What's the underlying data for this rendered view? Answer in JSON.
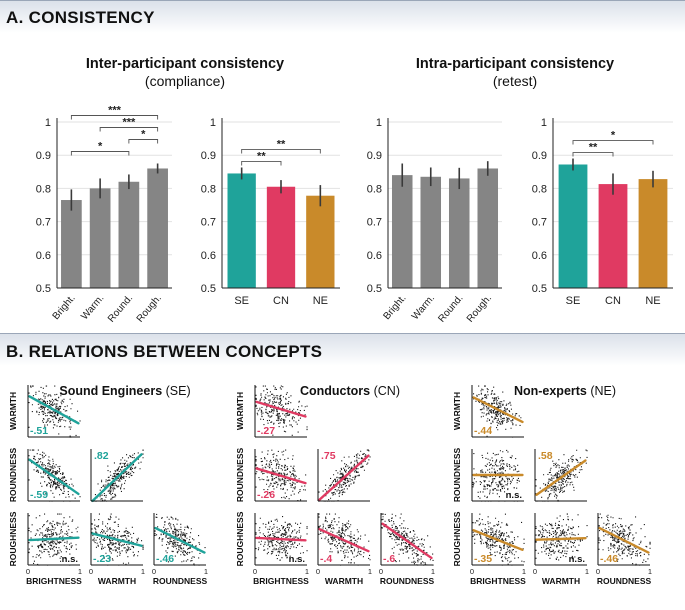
{
  "section_a": {
    "title": "A. CONSISTENCY",
    "inter_title": "Inter-participant consistency",
    "inter_subtitle": "(compliance)",
    "intra_title": "Intra-participant consistency",
    "intra_subtitle": "(retest)"
  },
  "section_b": {
    "title": "B. RELATIONS BETWEEN CONCEPTS",
    "groups": [
      {
        "name": "Sound Engineers",
        "abbr": "(SE)"
      },
      {
        "name": "Conductors",
        "abbr": "(CN)"
      },
      {
        "name": "Non-experts",
        "abbr": "(NE)"
      }
    ],
    "row_labels": [
      "WARMTH",
      "ROUNDNESS",
      "ROUGHNESS"
    ],
    "col_labels": [
      "BRIGHTNESS",
      "WARMTH",
      "ROUNDNESS"
    ],
    "tick_labels": [
      "0",
      "1"
    ],
    "ns_label": "n.s."
  },
  "colors": {
    "gray": "#858585",
    "SE": "#1fa39a",
    "CN": "#e03a62",
    "NE": "#c98a2a"
  },
  "chart_data": [
    {
      "type": "bar",
      "title": "Inter-participant consistency (compliance)",
      "categories": [
        "Bright.",
        "Warm.",
        "Round.",
        "Rough."
      ],
      "values": [
        0.765,
        0.8,
        0.82,
        0.86
      ],
      "errors": [
        0.032,
        0.03,
        0.022,
        0.015
      ],
      "ylim": [
        0.5,
        1
      ],
      "yticks": [
        "0.5",
        "0.6",
        "0.7",
        "0.8",
        "0.9",
        "1"
      ],
      "color_keys": [
        "gray",
        "gray",
        "gray",
        "gray"
      ],
      "tick_rotation": "rotated",
      "significance": [
        {
          "from": 0,
          "to": 3,
          "label": "***"
        },
        {
          "from": 1,
          "to": 3,
          "label": "***"
        },
        {
          "from": 2,
          "to": 3,
          "label": "*"
        },
        {
          "from": 0,
          "to": 2,
          "label": "*"
        }
      ]
    },
    {
      "type": "bar",
      "title": "Inter-participant consistency (compliance)",
      "categories": [
        "SE",
        "CN",
        "NE"
      ],
      "values": [
        0.845,
        0.805,
        0.778
      ],
      "errors": [
        0.018,
        0.02,
        0.032
      ],
      "ylim": [
        0.5,
        1
      ],
      "yticks": [
        "0.5",
        "0.6",
        "0.7",
        "0.8",
        "0.9",
        "1"
      ],
      "color_keys": [
        "SE",
        "CN",
        "NE"
      ],
      "tick_rotation": "none",
      "significance": [
        {
          "from": 0,
          "to": 2,
          "label": "**"
        },
        {
          "from": 0,
          "to": 1,
          "label": "**"
        }
      ]
    },
    {
      "type": "bar",
      "title": "Intra-participant consistency (retest)",
      "categories": [
        "Bright.",
        "Warm.",
        "Round.",
        "Rough."
      ],
      "values": [
        0.84,
        0.835,
        0.83,
        0.86
      ],
      "errors": [
        0.035,
        0.028,
        0.032,
        0.022
      ],
      "ylim": [
        0.5,
        1
      ],
      "yticks": [
        "0.5",
        "0.6",
        "0.7",
        "0.8",
        "0.9",
        "1"
      ],
      "color_keys": [
        "gray",
        "gray",
        "gray",
        "gray"
      ],
      "tick_rotation": "rotated",
      "significance": []
    },
    {
      "type": "bar",
      "title": "Intra-participant consistency (retest)",
      "categories": [
        "SE",
        "CN",
        "NE"
      ],
      "values": [
        0.872,
        0.813,
        0.828
      ],
      "errors": [
        0.018,
        0.032,
        0.025
      ],
      "ylim": [
        0.5,
        1
      ],
      "yticks": [
        "0.5",
        "0.6",
        "0.7",
        "0.8",
        "0.9",
        "1"
      ],
      "color_keys": [
        "SE",
        "CN",
        "NE"
      ],
      "tick_rotation": "none",
      "significance": [
        {
          "from": 0,
          "to": 2,
          "label": "*"
        },
        {
          "from": 0,
          "to": 1,
          "label": "**"
        }
      ]
    },
    {
      "type": "scatter",
      "title": "Relations between concepts",
      "xlim": [
        0,
        1
      ],
      "ylim": [
        0,
        1
      ],
      "groups": [
        {
          "name": "SE",
          "color_key": "SE",
          "panels": [
            {
              "row": 0,
              "col": 0,
              "xlabel": "BRIGHTNESS",
              "ylabel": "WARMTH",
              "r": "-.51",
              "ns": false,
              "cx": 0.45,
              "cy": 0.55,
              "sx": 0.2,
              "sy": 0.2,
              "slope": -0.55,
              "n": 260
            },
            {
              "row": 1,
              "col": 0,
              "xlabel": "BRIGHTNESS",
              "ylabel": "ROUNDNESS",
              "r": "-.59",
              "ns": false,
              "cx": 0.45,
              "cy": 0.5,
              "sx": 0.2,
              "sy": 0.2,
              "slope": -0.7,
              "n": 260
            },
            {
              "row": 1,
              "col": 1,
              "xlabel": "WARMTH",
              "ylabel": "ROUNDNESS",
              "r": ".82",
              "ns": false,
              "cx": 0.5,
              "cy": 0.45,
              "sx": 0.2,
              "sy": 0.2,
              "slope": 0.95,
              "n": 260
            },
            {
              "row": 2,
              "col": 0,
              "xlabel": "BRIGHTNESS",
              "ylabel": "ROUGHNESS",
              "r": "",
              "ns": true,
              "cx": 0.45,
              "cy": 0.5,
              "sx": 0.22,
              "sy": 0.2,
              "slope": 0.05,
              "n": 260
            },
            {
              "row": 2,
              "col": 1,
              "xlabel": "WARMTH",
              "ylabel": "ROUGHNESS",
              "r": "-.23",
              "ns": false,
              "cx": 0.45,
              "cy": 0.5,
              "sx": 0.22,
              "sy": 0.2,
              "slope": -0.25,
              "n": 260
            },
            {
              "row": 2,
              "col": 2,
              "xlabel": "ROUNDNESS",
              "ylabel": "ROUGHNESS",
              "r": "-.46",
              "ns": false,
              "cx": 0.45,
              "cy": 0.5,
              "sx": 0.22,
              "sy": 0.2,
              "slope": -0.5,
              "n": 260
            }
          ]
        },
        {
          "name": "CN",
          "color_key": "CN",
          "panels": [
            {
              "row": 0,
              "col": 0,
              "xlabel": "BRIGHTNESS",
              "ylabel": "WARMTH",
              "r": "-.27",
              "ns": false,
              "cx": 0.45,
              "cy": 0.55,
              "sx": 0.22,
              "sy": 0.2,
              "slope": -0.3,
              "n": 260
            },
            {
              "row": 1,
              "col": 0,
              "xlabel": "BRIGHTNESS",
              "ylabel": "ROUNDNESS",
              "r": "-.26",
              "ns": false,
              "cx": 0.45,
              "cy": 0.5,
              "sx": 0.22,
              "sy": 0.2,
              "slope": -0.3,
              "n": 260
            },
            {
              "row": 1,
              "col": 1,
              "xlabel": "WARMTH",
              "ylabel": "ROUNDNESS",
              "r": ".75",
              "ns": false,
              "cx": 0.5,
              "cy": 0.45,
              "sx": 0.2,
              "sy": 0.2,
              "slope": 0.9,
              "n": 260
            },
            {
              "row": 2,
              "col": 0,
              "xlabel": "BRIGHTNESS",
              "ylabel": "ROUGHNESS",
              "r": "",
              "ns": true,
              "cx": 0.45,
              "cy": 0.5,
              "sx": 0.22,
              "sy": 0.2,
              "slope": -0.05,
              "n": 260
            },
            {
              "row": 2,
              "col": 1,
              "xlabel": "WARMTH",
              "ylabel": "ROUGHNESS",
              "r": "-.4",
              "ns": false,
              "cx": 0.45,
              "cy": 0.5,
              "sx": 0.22,
              "sy": 0.2,
              "slope": -0.45,
              "n": 260
            },
            {
              "row": 2,
              "col": 2,
              "xlabel": "ROUNDNESS",
              "ylabel": "ROUGHNESS",
              "r": "-.6",
              "ns": false,
              "cx": 0.45,
              "cy": 0.5,
              "sx": 0.22,
              "sy": 0.2,
              "slope": -0.7,
              "n": 260
            }
          ]
        },
        {
          "name": "NE",
          "color_key": "NE",
          "panels": [
            {
              "row": 0,
              "col": 0,
              "xlabel": "BRIGHTNESS",
              "ylabel": "WARMTH",
              "r": "-.44",
              "ns": false,
              "cx": 0.45,
              "cy": 0.55,
              "sx": 0.2,
              "sy": 0.2,
              "slope": -0.5,
              "n": 260
            },
            {
              "row": 1,
              "col": 0,
              "xlabel": "BRIGHTNESS",
              "ylabel": "ROUNDNESS",
              "r": "",
              "ns": true,
              "cx": 0.45,
              "cy": 0.5,
              "sx": 0.2,
              "sy": 0.22,
              "slope": 0.0,
              "n": 260
            },
            {
              "row": 1,
              "col": 1,
              "xlabel": "WARMTH",
              "ylabel": "ROUNDNESS",
              "r": ".58",
              "ns": false,
              "cx": 0.5,
              "cy": 0.45,
              "sx": 0.2,
              "sy": 0.2,
              "slope": 0.7,
              "n": 260
            },
            {
              "row": 2,
              "col": 0,
              "xlabel": "BRIGHTNESS",
              "ylabel": "ROUGHNESS",
              "r": "-.35",
              "ns": false,
              "cx": 0.45,
              "cy": 0.5,
              "sx": 0.22,
              "sy": 0.2,
              "slope": -0.4,
              "n": 260
            },
            {
              "row": 2,
              "col": 1,
              "xlabel": "WARMTH",
              "ylabel": "ROUGHNESS",
              "r": "",
              "ns": true,
              "cx": 0.45,
              "cy": 0.5,
              "sx": 0.22,
              "sy": 0.2,
              "slope": 0.03,
              "n": 260
            },
            {
              "row": 2,
              "col": 2,
              "xlabel": "ROUNDNESS",
              "ylabel": "ROUGHNESS",
              "r": "-.46",
              "ns": false,
              "cx": 0.45,
              "cy": 0.5,
              "sx": 0.22,
              "sy": 0.2,
              "slope": -0.5,
              "n": 260
            }
          ]
        }
      ]
    }
  ]
}
